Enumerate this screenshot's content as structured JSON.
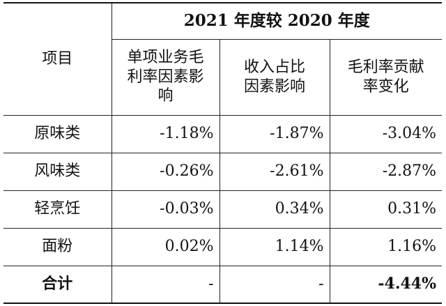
{
  "table": {
    "row_header_label": "项目",
    "period_header": "2021 年度较 2020 年度",
    "columns": [
      "单项业务毛利率因素影响",
      "收入占比因素影响",
      "毛利率贡献率变化"
    ],
    "rows": [
      {
        "item": "原味类",
        "values": [
          "-1.18%",
          "-1.87%",
          "-3.04%"
        ]
      },
      {
        "item": "风味类",
        "values": [
          "-0.26%",
          "-2.61%",
          "-2.87%"
        ]
      },
      {
        "item": "轻烹饪",
        "values": [
          "-0.03%",
          "0.34%",
          "0.31%"
        ]
      },
      {
        "item": "面粉",
        "values": [
          "0.02%",
          "1.14%",
          "1.16%"
        ]
      }
    ],
    "total": {
      "item": "合计",
      "values": [
        "-",
        "-",
        "-4.44%"
      ]
    }
  }
}
